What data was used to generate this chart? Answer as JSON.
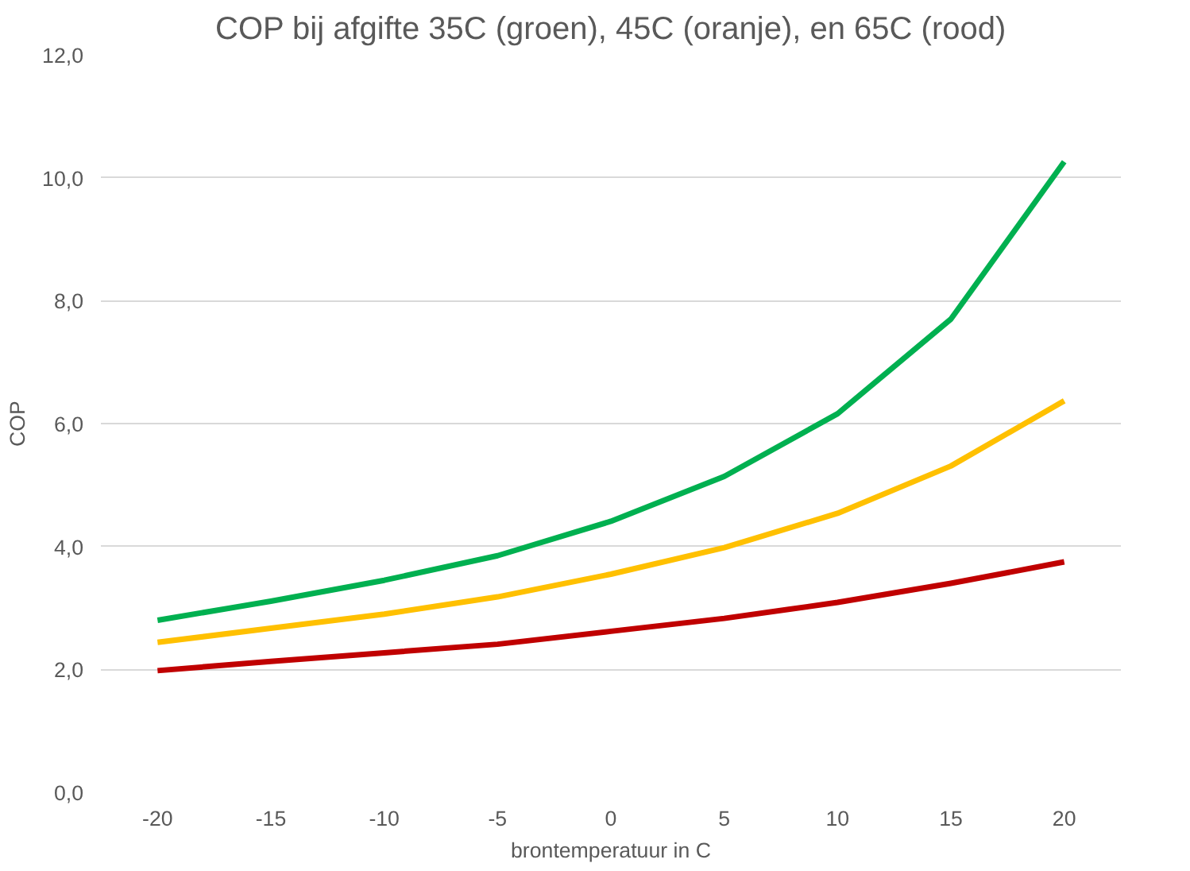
{
  "chart_data": {
    "type": "line",
    "title": "COP bij afgifte 35C (groen), 45C (oranje), en 65C (rood)",
    "xlabel": "brontemperatuur in C",
    "ylabel": "COP",
    "categories": [
      "-20",
      "-15",
      "-10",
      "-5",
      "0",
      "5",
      "10",
      "15",
      "20"
    ],
    "series": [
      {
        "color": "#00b050",
        "values": [
          2.8,
          3.11,
          3.45,
          3.85,
          4.41,
          5.14,
          6.16,
          7.7,
          10.26
        ]
      },
      {
        "color": "#ffc000",
        "values": [
          2.44,
          2.67,
          2.9,
          3.18,
          3.55,
          3.98,
          4.54,
          5.31,
          6.37
        ]
      },
      {
        "color": "#c00000",
        "values": [
          1.98,
          2.13,
          2.27,
          2.41,
          2.62,
          2.83,
          3.09,
          3.4,
          3.75
        ]
      }
    ],
    "ylim": [
      0,
      12
    ],
    "yticks": [
      {
        "value": 0,
        "label": "0,0"
      },
      {
        "value": 2,
        "label": "2,0"
      },
      {
        "value": 4,
        "label": "4,0"
      },
      {
        "value": 6,
        "label": "6,0"
      },
      {
        "value": 8,
        "label": "8,0"
      },
      {
        "value": 10,
        "label": "10,0"
      },
      {
        "value": 12,
        "label": "12,0"
      }
    ],
    "grid": "y",
    "line_style": "solid"
  }
}
